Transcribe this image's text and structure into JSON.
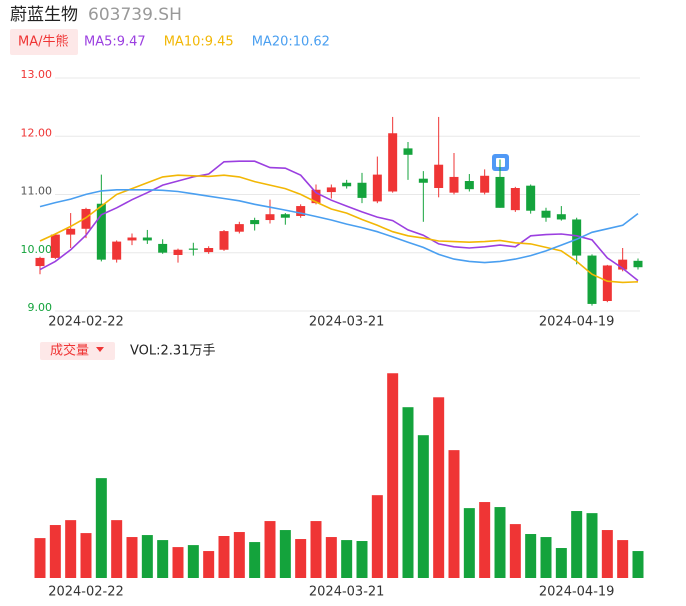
{
  "header": {
    "name": "蔚蓝生物",
    "code": "603739.SH"
  },
  "chart_data": [
    {
      "type": "candlestick",
      "button": "MA/牛熊",
      "categories": [
        null,
        null,
        null,
        "2024-02-22",
        null,
        null,
        null,
        null,
        null,
        null,
        null,
        null,
        null,
        null,
        null,
        null,
        null,
        null,
        null,
        null,
        "2024-03-21",
        null,
        null,
        null,
        null,
        null,
        null,
        null,
        null,
        null,
        null,
        null,
        null,
        null,
        null,
        "2024-04-19",
        null,
        null,
        null,
        null
      ],
      "open": [
        9.72,
        9.86,
        10.26,
        10.36,
        10.79,
        9.83,
        10.16,
        10.21,
        10.1,
        9.91,
        10.02,
        9.96,
        10.0,
        10.31,
        10.51,
        10.51,
        10.61,
        10.58,
        10.8,
        10.99,
        11.15,
        11.15,
        10.83,
        11.0,
        11.74,
        11.22,
        11.06,
        10.98,
        11.18,
        10.98,
        11.25,
        10.68,
        11.1,
        10.67,
        10.61,
        10.52,
        9.9,
        9.12,
        9.66,
        9.81
      ],
      "high": [
        9.88,
        10.28,
        10.63,
        10.72,
        11.29,
        10.16,
        10.28,
        10.34,
        10.18,
        10.02,
        10.12,
        10.06,
        10.34,
        10.48,
        10.55,
        10.86,
        10.63,
        10.78,
        11.12,
        11.12,
        11.2,
        11.32,
        11.6,
        12.28,
        11.85,
        11.35,
        12.28,
        11.66,
        11.3,
        11.38,
        11.55,
        11.08,
        11.12,
        10.72,
        10.75,
        10.55,
        9.92,
        9.74,
        10.03,
        9.85
      ],
      "low": [
        9.58,
        9.84,
        10.03,
        10.2,
        9.8,
        9.78,
        10.08,
        10.1,
        9.93,
        9.78,
        9.9,
        9.93,
        9.98,
        10.28,
        10.33,
        10.45,
        10.43,
        10.55,
        10.78,
        10.88,
        11.05,
        10.8,
        10.8,
        10.98,
        11.2,
        10.48,
        10.9,
        10.95,
        11.0,
        10.95,
        10.72,
        10.65,
        10.62,
        10.48,
        10.5,
        9.75,
        9.04,
        9.1,
        9.63,
        9.66
      ],
      "close": [
        9.86,
        10.26,
        10.36,
        10.7,
        9.83,
        10.14,
        10.21,
        10.16,
        9.95,
        10.0,
        10.0,
        10.03,
        10.32,
        10.44,
        10.44,
        10.61,
        10.55,
        10.75,
        11.03,
        11.07,
        11.09,
        10.89,
        11.29,
        12.0,
        11.63,
        11.15,
        11.46,
        11.25,
        11.04,
        11.27,
        10.72,
        11.06,
        10.67,
        10.55,
        10.52,
        9.9,
        9.07,
        9.73,
        9.83,
        9.7
      ],
      "up_color": "#ef3535",
      "down_color": "#14a33c",
      "series": [
        {
          "name": "MA5:9.47",
          "color": "#9b3fe0",
          "values": [
            9.66,
            9.8,
            10.0,
            10.25,
            10.6,
            10.72,
            10.86,
            10.98,
            11.11,
            11.18,
            11.25,
            11.3,
            11.51,
            11.52,
            11.52,
            11.41,
            11.4,
            11.28,
            10.98,
            10.85,
            10.75,
            10.65,
            10.56,
            10.5,
            10.34,
            10.25,
            10.1,
            10.05,
            10.03,
            10.05,
            10.08,
            10.05,
            10.24,
            10.26,
            10.27,
            10.24,
            10.17,
            9.86,
            9.68,
            9.47
          ]
        },
        {
          "name": "MA10:9.45",
          "color": "#f2b705",
          "values": [
            10.15,
            10.27,
            10.4,
            10.55,
            10.75,
            10.95,
            11.05,
            11.15,
            11.25,
            11.28,
            11.27,
            11.26,
            11.28,
            11.25,
            11.17,
            11.11,
            11.05,
            10.95,
            10.82,
            10.7,
            10.63,
            10.52,
            10.42,
            10.31,
            10.24,
            10.2,
            10.15,
            10.14,
            10.13,
            10.14,
            10.16,
            10.12,
            10.1,
            10.04,
            9.98,
            9.8,
            9.58,
            9.46,
            9.44,
            9.45
          ]
        },
        {
          "name": "MA20:10.62",
          "color": "#4a9ff0",
          "values": [
            10.74,
            10.81,
            10.87,
            10.95,
            11.01,
            11.03,
            11.03,
            11.03,
            11.02,
            11.0,
            10.96,
            10.92,
            10.88,
            10.84,
            10.78,
            10.73,
            10.68,
            10.63,
            10.57,
            10.51,
            10.44,
            10.38,
            10.31,
            10.22,
            10.13,
            10.04,
            9.92,
            9.84,
            9.8,
            9.78,
            9.8,
            9.84,
            9.9,
            9.98,
            10.08,
            10.18,
            10.3,
            10.36,
            10.42,
            10.62
          ]
        }
      ],
      "ylim": [
        9,
        13
      ],
      "yticks": [
        {
          "value": 9,
          "label": "9.00"
        },
        {
          "value": 10,
          "label": "10.00"
        },
        {
          "value": 11,
          "label": "11.00"
        },
        {
          "value": 12,
          "label": "12.00"
        },
        {
          "value": 13,
          "label": "13.00"
        }
      ],
      "ytick_colors": [
        "#14a33c",
        "#14a33c",
        "#555555",
        "#ef3535",
        "#ef3535"
      ],
      "grid": true
    },
    {
      "type": "bar",
      "button": "成交量",
      "label": "VOL:2.31万手",
      "categories": [
        null,
        null,
        null,
        "2024-02-22",
        null,
        null,
        null,
        null,
        null,
        null,
        null,
        null,
        null,
        null,
        null,
        null,
        null,
        null,
        null,
        null,
        "2024-03-21",
        null,
        null,
        null,
        null,
        null,
        null,
        null,
        null,
        null,
        null,
        null,
        null,
        null,
        null,
        "2024-04-19",
        null,
        null,
        null,
        null
      ],
      "values": [
        3.42,
        4.54,
        4.96,
        3.85,
        8.56,
        4.96,
        3.51,
        3.68,
        3.25,
        2.65,
        2.82,
        2.31,
        3.6,
        3.94,
        3.08,
        4.88,
        4.11,
        3.34,
        4.88,
        3.51,
        3.25,
        3.17,
        7.1,
        17.55,
        14.64,
        12.24,
        15.49,
        10.96,
        5.99,
        6.51,
        6.08,
        4.62,
        3.77,
        3.51,
        2.57,
        5.74,
        5.56,
        4.11,
        3.25,
        2.31
      ],
      "ylim": [
        0,
        18
      ]
    }
  ]
}
